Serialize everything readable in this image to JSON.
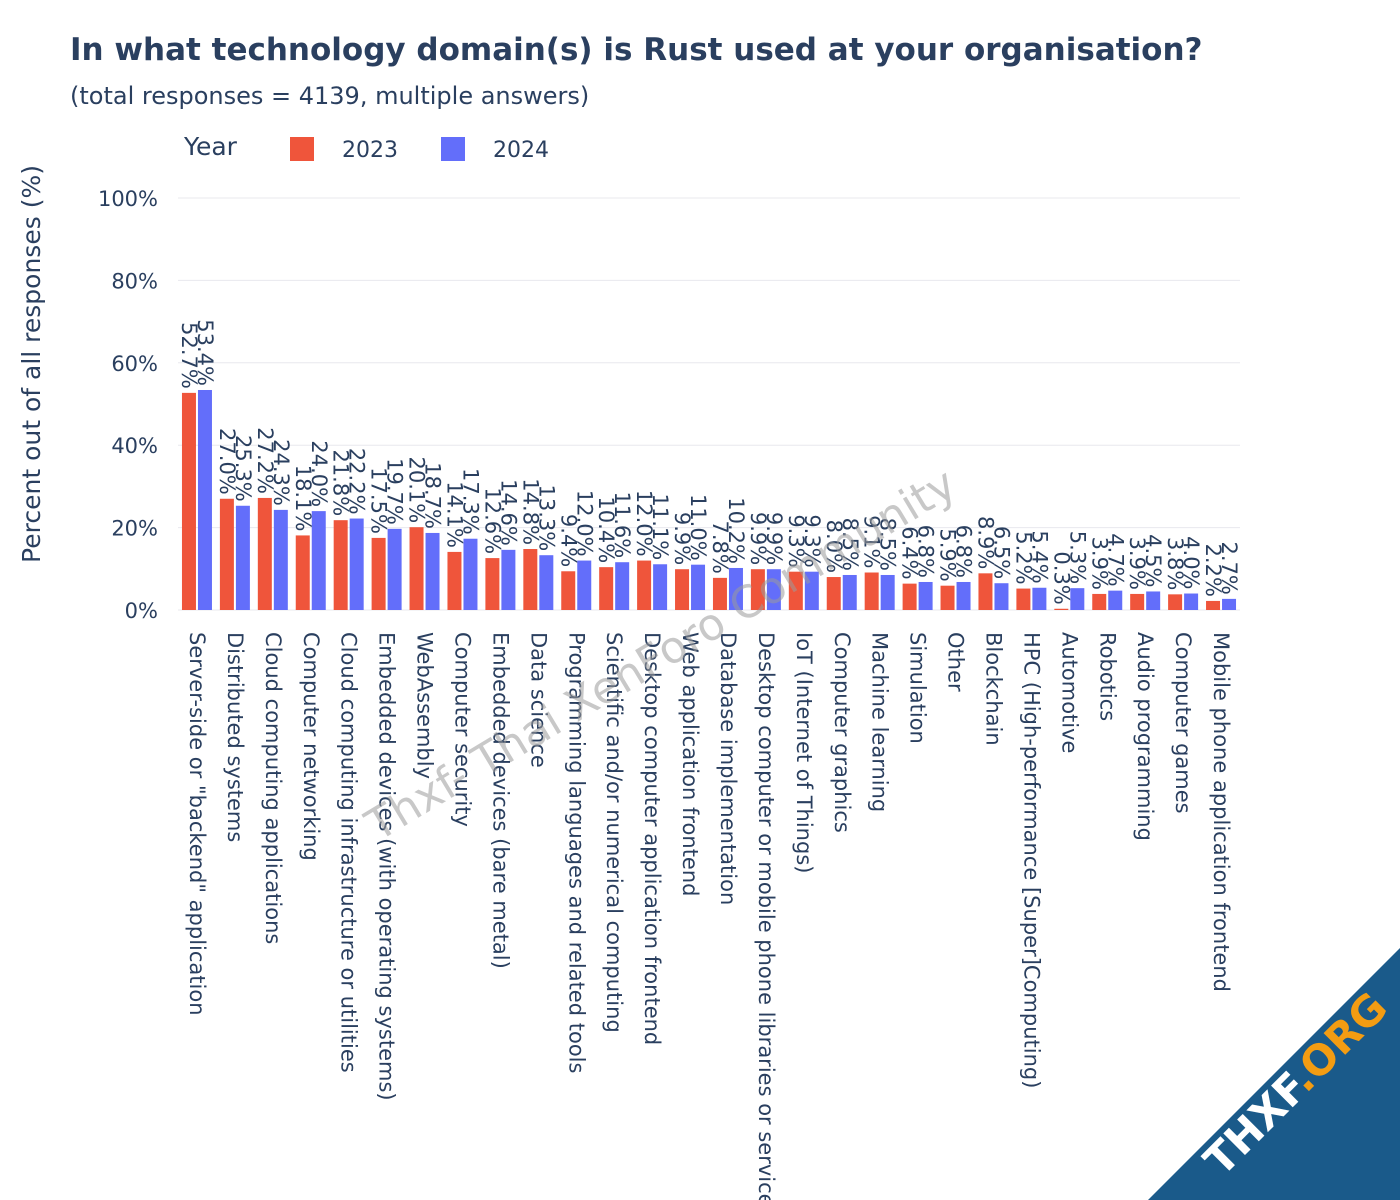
{
  "chart_data": {
    "type": "bar",
    "title": "In what technology domain(s) is Rust used at your organisation?",
    "subtitle": "(total responses = 4139, multiple answers)",
    "xlabel": "",
    "ylabel": "Percent out of all responses (%)",
    "ylim": [
      0,
      100
    ],
    "yticks": [
      0,
      20,
      40,
      60,
      80,
      100
    ],
    "ytick_labels": [
      "0%",
      "20%",
      "40%",
      "60%",
      "80%",
      "100%"
    ],
    "grid": true,
    "legend": {
      "title": "Year",
      "placement": "top-left"
    },
    "categories": [
      "Server-side or \"backend\" application",
      "Distributed systems",
      "Cloud computing applications",
      "Computer networking",
      "Cloud computing infrastructure or utilities",
      "Embedded devices (with operating systems)",
      "WebAssembly",
      "Computer security",
      "Embedded devices (bare metal)",
      "Data science",
      "Programming languages and related tools",
      "Scientific and/or numerical computing",
      "Desktop computer application frontend",
      "Web application frontend",
      "Database implementation",
      "Desktop computer or mobile phone libraries or services",
      "IoT (Internet of Things)",
      "Computer graphics",
      "Machine learning",
      "Simulation",
      "Other",
      "Blockchain",
      "HPC (High-performance [Super]Computing)",
      "Automotive",
      "Robotics",
      "Audio programming",
      "Computer games",
      "Mobile phone application frontend"
    ],
    "series": [
      {
        "name": "2023",
        "color": "#ef553b",
        "values": [
          52.7,
          27.0,
          27.2,
          18.1,
          21.8,
          17.5,
          20.1,
          14.1,
          12.6,
          14.8,
          9.4,
          10.4,
          12.0,
          9.9,
          7.8,
          9.9,
          9.3,
          8.0,
          9.1,
          6.4,
          5.9,
          8.9,
          5.2,
          0.3,
          3.9,
          3.9,
          3.8,
          2.2
        ],
        "labels": [
          "52.7%",
          "27.0%",
          "27.2%",
          "18.1%",
          "21.8%",
          "17.5%",
          "20.1%",
          "14.1%",
          "12.6%",
          "14.8%",
          "9.4%",
          "10.4%",
          "12.0%",
          "9.9%",
          "7.8%",
          "9.9%",
          "9.3%",
          "8.0%",
          "9.1%",
          "6.4%",
          "5.9%",
          "8.9%",
          "5.2%",
          "0.3%",
          "3.9%",
          "3.9%",
          "3.8%",
          "2.2%"
        ]
      },
      {
        "name": "2024",
        "color": "#636efa",
        "values": [
          53.4,
          25.3,
          24.3,
          24.0,
          22.2,
          19.7,
          18.7,
          17.3,
          14.6,
          13.3,
          12.0,
          11.6,
          11.1,
          11.0,
          10.2,
          9.9,
          9.3,
          8.5,
          8.5,
          6.8,
          6.8,
          6.5,
          5.4,
          5.3,
          4.7,
          4.5,
          4.0,
          2.7
        ],
        "labels": [
          "53.4%",
          "25.3%",
          "24.3%",
          "24.0%",
          "22.2%",
          "19.7%",
          "18.7%",
          "17.3%",
          "14.6%",
          "13.3%",
          "12.0%",
          "11.6%",
          "11.1%",
          "11.0%",
          "10.2%",
          "9.9%",
          "9.3%",
          "8.5%",
          "8.5%",
          "6.8%",
          "6.8%",
          "6.5%",
          "5.4%",
          "5.3%",
          "4.7%",
          "4.5%",
          "4.0%",
          "2.7%"
        ]
      }
    ]
  },
  "watermark": {
    "text": "Thxf- Thai XenForo Community"
  },
  "badge": {
    "text_white": "THXF",
    "text_orange": ".ORG",
    "background": "#1a5a8a",
    "orange": "#f39c12"
  }
}
